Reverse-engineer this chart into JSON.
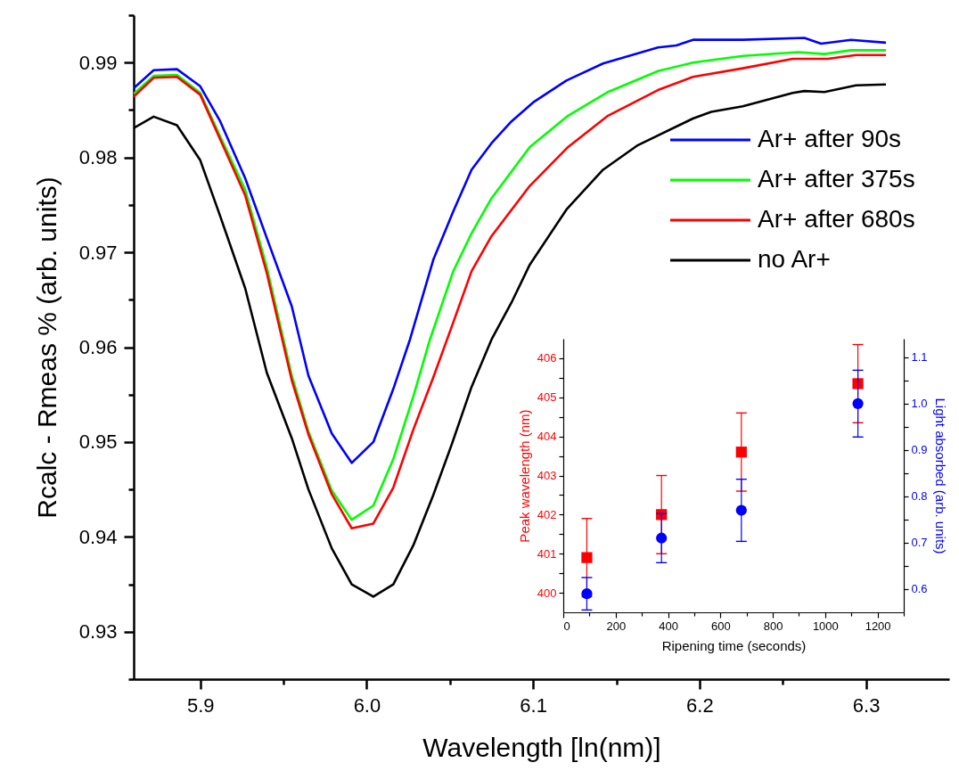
{
  "chart_data": [
    {
      "type": "line",
      "xlabel": "Wavelength [ln(nm)]",
      "ylabel": "Rcalc - Rmeas % (arb. units)",
      "xlim": [
        5.86,
        6.35
      ],
      "ylim": [
        0.925,
        0.995
      ],
      "xticks": [
        5.9,
        {
          "value": 5.95,
          "label": null
        },
        {
          "value": 6,
          "label": "6.0"
        },
        {
          "value": 6.05,
          "label": null
        },
        6.1,
        {
          "value": 6.15,
          "label": null
        },
        6.2,
        {
          "value": 6.25,
          "label": null
        },
        6.3
      ],
      "yticks": [
        {
          "value": 0.925,
          "label": null
        },
        0.93,
        {
          "value": 0.935,
          "label": null
        },
        0.94,
        {
          "value": 0.945,
          "label": null
        },
        0.95,
        {
          "value": 0.955,
          "label": null
        },
        0.96,
        {
          "value": 0.965,
          "label": null
        },
        0.97,
        {
          "value": 0.975,
          "label": null
        },
        0.98,
        {
          "value": 0.985,
          "label": null
        },
        0.99,
        {
          "value": 0.995,
          "label": null
        }
      ],
      "legend": "right",
      "line_style": "solid",
      "series": [
        {
          "name": "Ar+ after 90s",
          "color": "#0000ff",
          "x": [
            5.86,
            5.872,
            5.886,
            5.9,
            5.912,
            5.927,
            5.94,
            5.955,
            5.965,
            5.979,
            5.991,
            6.004,
            6.016,
            6.026,
            6.04,
            6.052,
            6.063,
            6.075,
            6.087,
            6.1,
            6.12,
            6.142,
            6.175,
            6.186,
            6.196,
            6.226,
            6.263,
            6.273,
            6.291,
            6.312
          ],
          "values": [
            0.9873,
            0.9892,
            0.9893,
            0.9875,
            0.9838,
            0.9778,
            0.9715,
            0.9643,
            0.957,
            0.9509,
            0.9478,
            0.95,
            0.9556,
            0.9608,
            0.9692,
            0.9743,
            0.9787,
            0.9815,
            0.9838,
            0.9858,
            0.9881,
            0.9899,
            0.9916,
            0.9918,
            0.9924,
            0.9924,
            0.9926,
            0.992,
            0.9924,
            0.9921
          ]
        },
        {
          "name": "Ar+ after 375s",
          "color": "#00ff00",
          "x": [
            5.86,
            5.872,
            5.886,
            5.9,
            5.912,
            5.927,
            5.94,
            5.955,
            5.965,
            5.979,
            5.991,
            6.004,
            6.016,
            6.028,
            6.038,
            6.052,
            6.063,
            6.075,
            6.098,
            6.121,
            6.145,
            6.175,
            6.196,
            6.226,
            6.259,
            6.275,
            6.291,
            6.312
          ],
          "values": [
            0.9867,
            0.9886,
            0.9887,
            0.9868,
            0.9822,
            0.9766,
            0.9684,
            0.957,
            0.9511,
            0.9449,
            0.9418,
            0.9433,
            0.9482,
            0.9548,
            0.9608,
            0.968,
            0.972,
            0.9757,
            0.9811,
            0.9844,
            0.9869,
            0.9891,
            0.99,
            0.9907,
            0.9911,
            0.9909,
            0.9913,
            0.9913
          ]
        },
        {
          "name": "Ar+ after 680s",
          "color": "#ff0000",
          "x": [
            5.86,
            5.872,
            5.886,
            5.9,
            5.912,
            5.927,
            5.94,
            5.955,
            5.965,
            5.979,
            5.991,
            6.004,
            6.016,
            6.028,
            6.04,
            6.052,
            6.063,
            6.075,
            6.098,
            6.121,
            6.145,
            6.175,
            6.196,
            6.226,
            6.256,
            6.277,
            6.294,
            6.312
          ],
          "values": [
            0.9864,
            0.9884,
            0.9885,
            0.9866,
            0.9819,
            0.976,
            0.9678,
            0.9565,
            0.9508,
            0.9445,
            0.9409,
            0.9414,
            0.9452,
            0.9513,
            0.9568,
            0.9626,
            0.968,
            0.9717,
            0.977,
            0.9811,
            0.9844,
            0.9871,
            0.9885,
            0.9894,
            0.9904,
            0.9904,
            0.9908,
            0.9908
          ]
        },
        {
          "name": "no Ar+",
          "color": "#000000",
          "x": [
            5.86,
            5.872,
            5.886,
            5.9,
            5.912,
            5.927,
            5.94,
            5.955,
            5.965,
            5.979,
            5.991,
            6.004,
            6.016,
            6.028,
            6.04,
            6.051,
            6.063,
            6.075,
            6.087,
            6.098,
            6.12,
            6.142,
            6.163,
            6.196,
            6.207,
            6.226,
            6.256,
            6.263,
            6.275,
            6.294,
            6.312
          ],
          "values": [
            0.9831,
            0.9843,
            0.9834,
            0.9797,
            0.9738,
            0.9662,
            0.9573,
            0.9504,
            0.945,
            0.9388,
            0.935,
            0.9337,
            0.935,
            0.9391,
            0.9444,
            0.9497,
            0.9558,
            0.9608,
            0.9647,
            0.9687,
            0.9745,
            0.9787,
            0.9813,
            0.9841,
            0.9848,
            0.9854,
            0.9868,
            0.987,
            0.9869,
            0.9876,
            0.9877
          ]
        }
      ]
    },
    {
      "type": "scatter",
      "xlabel": "Ripening time (seconds)",
      "ylabel": "Peak wavelength (nm)",
      "y2label": "Light absorbed (arb. units)",
      "x": [
        90,
        375,
        680,
        1125
      ],
      "xlim": [
        0,
        1300
      ],
      "ylim": [
        399.5,
        406.5
      ],
      "y2lim": [
        0.55,
        1.14
      ],
      "xticks": [
        0,
        {
          "value": 100,
          "label": null
        },
        200,
        {
          "value": 300,
          "label": null
        },
        400,
        {
          "value": 500,
          "label": null
        },
        600,
        {
          "value": 700,
          "label": null
        },
        800,
        {
          "value": 900,
          "label": null
        },
        1000,
        {
          "value": 1100,
          "label": null
        },
        1200,
        {
          "value": 1300,
          "label": null
        }
      ],
      "yticks": [
        400,
        {
          "value": 400.5,
          "label": null
        },
        401,
        {
          "value": 401.5,
          "label": null
        },
        402,
        {
          "value": 402.5,
          "label": null
        },
        403,
        {
          "value": 403.5,
          "label": null
        },
        404,
        {
          "value": 404.5,
          "label": null
        },
        405,
        {
          "value": 405.5,
          "label": null
        },
        406
      ],
      "y2ticks": [
        0.6,
        {
          "value": 0.65,
          "label": null
        },
        0.7,
        {
          "value": 0.75,
          "label": null
        },
        0.8,
        {
          "value": 0.85,
          "label": null
        },
        0.9,
        {
          "value": 0.95,
          "label": null
        },
        {
          "value": 1,
          "label": "1.0"
        },
        {
          "value": 1.05,
          "label": null
        },
        1.1
      ],
      "series": [
        {
          "color": "#ff0000",
          "marker": "square",
          "values": [
            400.9,
            402.0,
            403.6,
            405.35
          ],
          "errors": [
            1,
            1,
            1,
            1
          ]
        },
        {
          "color": "#0000ff",
          "marker": "circle",
          "axis": "y2",
          "values": [
            0.59,
            0.71,
            0.77,
            1.0
          ],
          "errors": [
            0.035,
            0.053,
            0.067,
            0.072
          ]
        }
      ]
    }
  ]
}
